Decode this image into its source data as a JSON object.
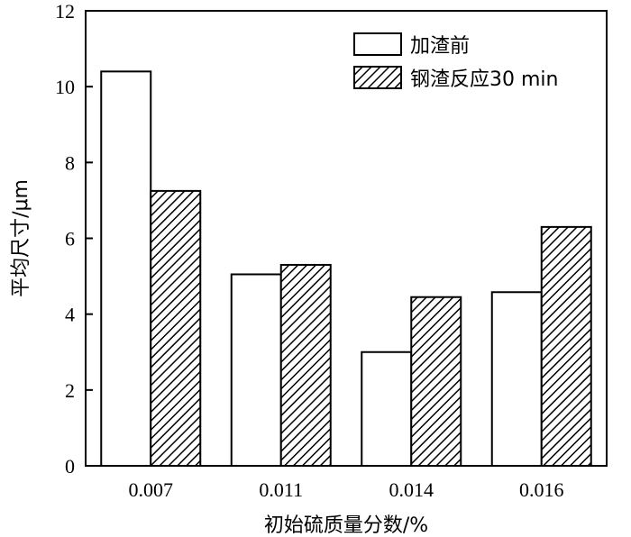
{
  "chart_data": {
    "type": "bar",
    "categories": [
      "0.007",
      "0.011",
      "0.014",
      "0.016"
    ],
    "series": [
      {
        "name": "加渣前",
        "values": [
          10.4,
          5.05,
          3.0,
          4.58
        ],
        "style": "plain"
      },
      {
        "name": "钢渣反应30 min",
        "values": [
          7.25,
          5.3,
          4.45,
          6.3
        ],
        "style": "hatched"
      }
    ],
    "title": "",
    "xlabel": "初始硫质量分数/%",
    "ylabel": "平均尺寸/μm",
    "ylim": [
      0,
      12
    ],
    "yticks": [
      "0",
      "2",
      "4",
      "6",
      "8",
      "10",
      "12"
    ],
    "grid": false,
    "legend_position": "top-right",
    "colors": {
      "bar_fill": "#ffffff",
      "stroke": "#000000",
      "hatch": "#000000"
    }
  }
}
